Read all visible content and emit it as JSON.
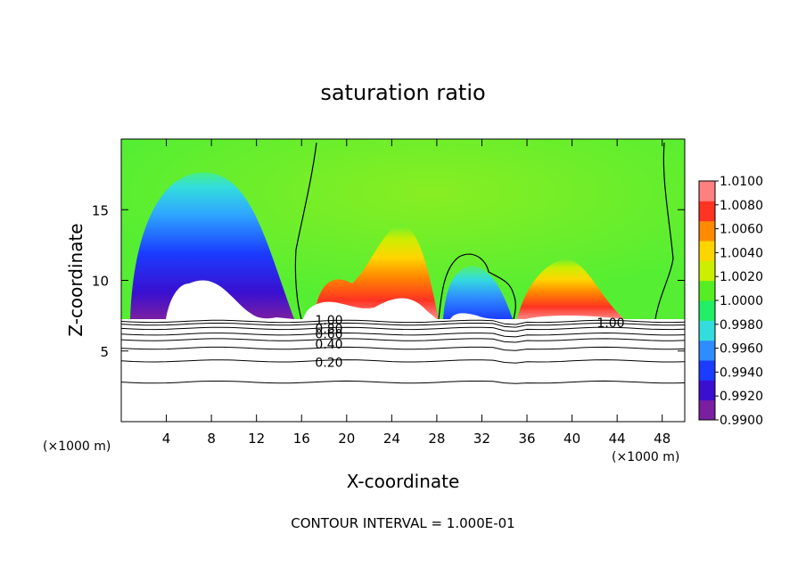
{
  "chart_data": {
    "type": "heatmap",
    "title": "saturation ratio",
    "xlabel": "X-coordinate",
    "ylabel": "Z-coordinate",
    "x_unit": "(×1000 m)",
    "x_unit_right": "(×1000 m)",
    "xlim": [
      0,
      50
    ],
    "ylim": [
      0,
      20
    ],
    "x_ticks": [
      4,
      8,
      12,
      16,
      20,
      24,
      28,
      32,
      36,
      40,
      44,
      48
    ],
    "y_ticks": [
      5,
      10,
      15
    ],
    "footer": "CONTOUR INTERVAL = 1.000E-01",
    "colorbar": {
      "ticks": [
        "1.0100",
        "1.0080",
        "1.0060",
        "1.0040",
        "1.0020",
        "1.0000",
        "0.9980",
        "0.9960",
        "0.9940",
        "0.9920",
        "0.9900"
      ],
      "colors": [
        "#7a1fa2",
        "#3a0fd0",
        "#1a3cff",
        "#2f8cff",
        "#33dddd",
        "#22ee66",
        "#55ee22",
        "#ccee00",
        "#ffd500",
        "#ff8a00",
        "#ff3322",
        "#ff8080"
      ]
    },
    "background_color": "#66ee33",
    "terrain_top_z": 7.2,
    "features": [
      {
        "kind": "subsaturated",
        "x_center": 7,
        "z_top": 17.5,
        "min_value": 0.99
      },
      {
        "kind": "supersaturated",
        "x_center": 24.5,
        "z_top": 13.5,
        "max_value": 1.009
      },
      {
        "kind": "subsaturated",
        "x_center": 31,
        "z_top": 10.8,
        "min_value": 0.993
      },
      {
        "kind": "supersaturated",
        "x_center": 40,
        "z_top": 12,
        "max_value": 1.008
      }
    ],
    "contour_labels": [
      {
        "text": "1.00",
        "x": 17.2,
        "z": 7.2
      },
      {
        "text": "0.80",
        "x": 17.2,
        "z": 6.6
      },
      {
        "text": "0.60",
        "x": 17.2,
        "z": 6.2
      },
      {
        "text": "0.40",
        "x": 17.2,
        "z": 5.5
      },
      {
        "text": "0.20",
        "x": 17.2,
        "z": 4.2
      },
      {
        "text": "1.00",
        "x": 42.2,
        "z": 7.0
      }
    ],
    "contour_lines_z": [
      2.8,
      4.3,
      5.2,
      5.8,
      6.2,
      6.6,
      6.9,
      7.1
    ]
  }
}
